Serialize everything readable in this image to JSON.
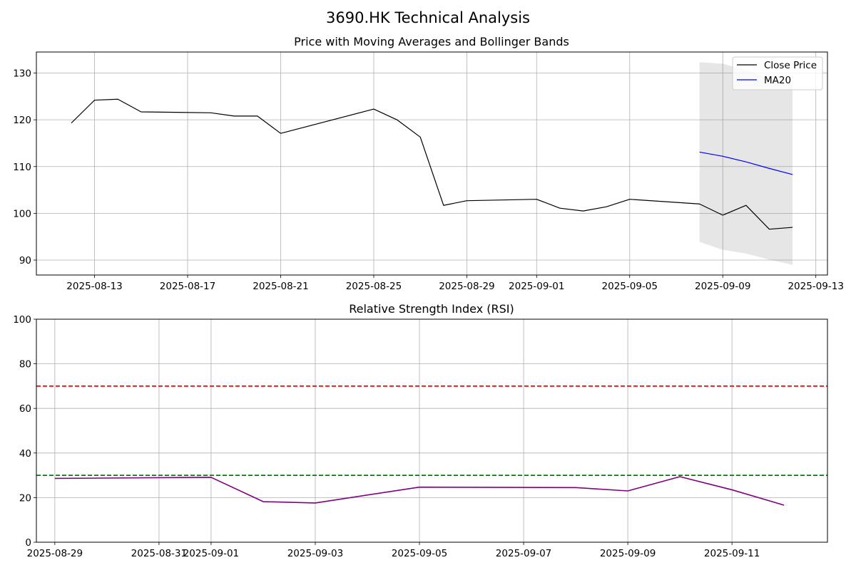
{
  "figure": {
    "title": "3690.HK Technical Analysis"
  },
  "chart_data": [
    {
      "type": "line",
      "title": "Price with Moving Averages and Bollinger Bands",
      "xlabel": "",
      "ylabel": "",
      "x_range": [
        "2025-08-10T12:00",
        "2025-09-13T12:00"
      ],
      "ylim": [
        86.8,
        134.5
      ],
      "x_ticks": [
        "2025-08-13",
        "2025-08-17",
        "2025-08-21",
        "2025-08-25",
        "2025-08-29",
        "2025-09-01",
        "2025-09-05",
        "2025-09-09",
        "2025-09-13"
      ],
      "y_ticks": [
        90,
        100,
        110,
        120,
        130
      ],
      "grid": true,
      "legend_position": "top-right",
      "series": [
        {
          "name": "Close Price",
          "color": "#000000",
          "x": [
            "2025-08-12",
            "2025-08-13",
            "2025-08-14",
            "2025-08-15",
            "2025-08-18",
            "2025-08-19",
            "2025-08-20",
            "2025-08-21",
            "2025-08-25",
            "2025-08-26",
            "2025-08-27",
            "2025-08-28",
            "2025-08-29",
            "2025-09-01",
            "2025-09-02",
            "2025-09-03",
            "2025-09-04",
            "2025-09-05",
            "2025-09-08",
            "2025-09-09",
            "2025-09-10",
            "2025-09-11",
            "2025-09-12"
          ],
          "values": [
            119.3,
            124.2,
            124.4,
            121.7,
            121.5,
            120.8,
            120.8,
            117.1,
            122.3,
            120.0,
            116.3,
            101.7,
            102.7,
            103.0,
            101.1,
            100.5,
            101.4,
            103.0,
            102.0,
            99.6,
            101.7,
            96.6,
            97.0
          ]
        },
        {
          "name": "MA20",
          "color": "#0000ff",
          "x": [
            "2025-09-08",
            "2025-09-09",
            "2025-09-10",
            "2025-09-11",
            "2025-09-12"
          ],
          "values": [
            113.1,
            112.2,
            111.0,
            109.6,
            108.3
          ]
        }
      ],
      "bands": {
        "color": "#808080",
        "x": [
          "2025-09-08",
          "2025-09-09",
          "2025-09-10",
          "2025-09-11",
          "2025-09-12"
        ],
        "upper": [
          132.3,
          132.0,
          130.6,
          129.0,
          127.6
        ],
        "lower": [
          93.9,
          92.2,
          91.4,
          90.1,
          89.0
        ]
      }
    },
    {
      "type": "line",
      "title": "Relative Strength Index (RSI)",
      "xlabel": "",
      "ylabel": "",
      "x_range": [
        "2025-08-28T15:30",
        "2025-09-12T20:00"
      ],
      "ylim": [
        0,
        100
      ],
      "x_ticks": [
        "2025-08-29",
        "2025-08-31",
        "2025-09-01",
        "2025-09-03",
        "2025-09-05",
        "2025-09-07",
        "2025-09-09",
        "2025-09-11"
      ],
      "y_ticks": [
        0,
        20,
        40,
        60,
        80,
        100
      ],
      "grid": true,
      "series": [
        {
          "name": "RSI",
          "color": "#800080",
          "x": [
            "2025-08-29",
            "2025-09-01",
            "2025-09-02",
            "2025-09-03",
            "2025-09-05",
            "2025-09-08",
            "2025-09-09",
            "2025-09-10",
            "2025-09-11",
            "2025-09-12"
          ],
          "values": [
            28.6,
            29.1,
            18.2,
            17.6,
            24.7,
            24.5,
            23.0,
            29.4,
            23.5,
            16.6
          ]
        }
      ],
      "reference_lines": [
        {
          "value": 70,
          "color": "#ff0000",
          "style": "dashed"
        },
        {
          "value": 30,
          "color": "#008000",
          "style": "dashed"
        }
      ]
    }
  ]
}
